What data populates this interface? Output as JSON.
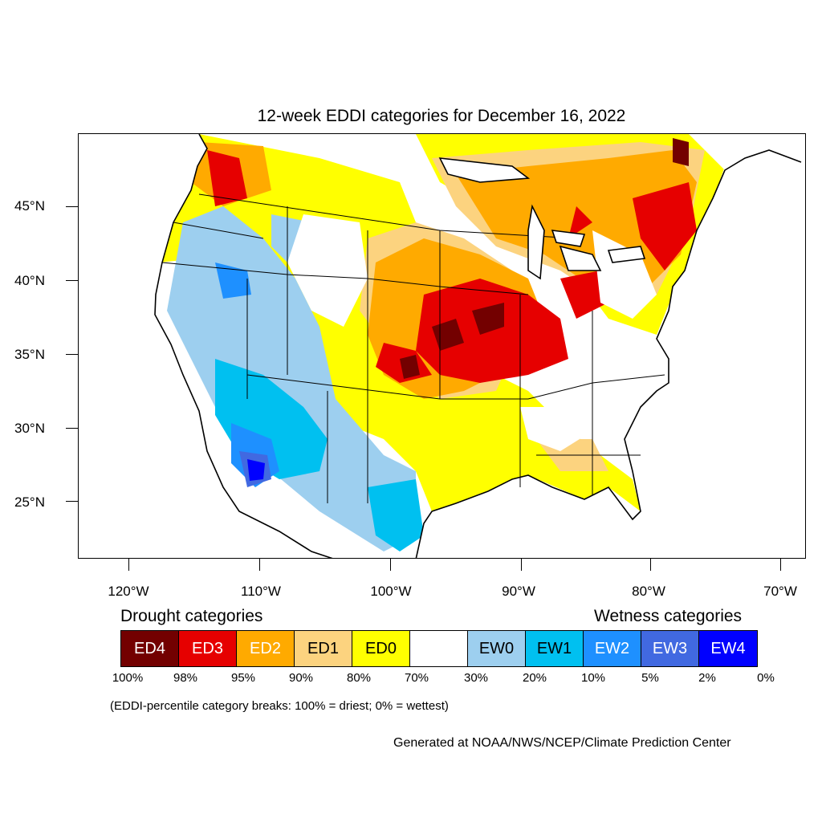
{
  "title": "12-week EDDI categories for December 16, 2022",
  "lat_labels": [
    "45°N",
    "40°N",
    "35°N",
    "30°N",
    "25°N"
  ],
  "lon_labels": [
    "120°W",
    "110°W",
    "100°W",
    "90°W",
    "80°W",
    "70°W"
  ],
  "legend": {
    "drought_heading": "Drought categories",
    "wetness_heading": "Wetness categories",
    "categories": [
      {
        "label": "ED4",
        "color": "#730000",
        "text_color": "#ffffff"
      },
      {
        "label": "ED3",
        "color": "#e60000",
        "text_color": "#ffffff"
      },
      {
        "label": "ED2",
        "color": "#ffaa00",
        "text_color": "#ffffff"
      },
      {
        "label": "ED1",
        "color": "#fcd37f",
        "text_color": "#000000"
      },
      {
        "label": "ED0",
        "color": "#ffff00",
        "text_color": "#000000"
      },
      {
        "label": "",
        "color": "#ffffff",
        "text_color": "#000000"
      },
      {
        "label": "EW0",
        "color": "#9dcfef",
        "text_color": "#000000"
      },
      {
        "label": "EW1",
        "color": "#00c0f0",
        "text_color": "#000000"
      },
      {
        "label": "EW2",
        "color": "#1e90ff",
        "text_color": "#ffffff"
      },
      {
        "label": "EW3",
        "color": "#4169e1",
        "text_color": "#ffffff"
      },
      {
        "label": "EW4",
        "color": "#0000ff",
        "text_color": "#ffffff"
      }
    ],
    "percentiles": [
      "100%",
      "98%",
      "95%",
      "90%",
      "80%",
      "70%",
      "30%",
      "20%",
      "10%",
      "5%",
      "2%",
      "0%"
    ]
  },
  "footnote": "(EDDI-percentile category breaks: 100% = driest; 0% = wettest)",
  "credit": "Generated at NOAA/NWS/NCEP/Climate Prediction Center"
}
